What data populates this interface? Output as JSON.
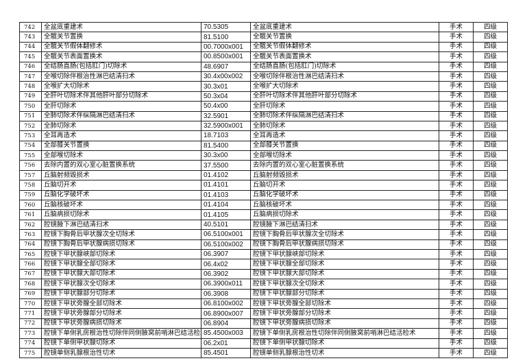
{
  "rows": [
    [
      "742",
      "全盆底重建术",
      "70.5305",
      "手术",
      "四级"
    ],
    [
      "743",
      "全髋关节置换",
      "81.5100",
      "手术",
      "四级"
    ],
    [
      "744",
      "全髋关节假体翻修术",
      "00.7000x001",
      "手术",
      "四级"
    ],
    [
      "745",
      "全髋关节表面置换术",
      "00.8500x001",
      "手术",
      "四级"
    ],
    [
      "746",
      "全结肠直肠(包括肛门)切除术",
      "48.6907",
      "手术",
      "四级"
    ],
    [
      "747",
      "全喉切除伴根治性淋巴结清扫术",
      "30.4x00x002",
      "手术",
      "四级"
    ],
    [
      "748",
      "全喉扩大切除术",
      "30.3x01",
      "手术",
      "四级"
    ],
    [
      "749",
      "全肝叶切除术伴其他肝叶部分切除术",
      "50.3x04",
      "手术",
      "四级"
    ],
    [
      "750",
      "全肝切除术",
      "50.4x00",
      "手术",
      "四级"
    ],
    [
      "751",
      "全肺切除术伴纵隔淋巴结清扫术",
      "32.5901",
      "手术",
      "四级"
    ],
    [
      "752",
      "全肺切除术",
      "32.5900x001",
      "手术",
      "四级"
    ],
    [
      "753",
      "全耳再造术",
      "18.7103",
      "手术",
      "四级"
    ],
    [
      "754",
      "全部膝关节置换",
      "81.5400",
      "手术",
      "四级"
    ],
    [
      "755",
      "全部喉切除术",
      "30.3x00",
      "手术",
      "四级"
    ],
    [
      "756",
      "去除内置的双心室心脏置换系统",
      "37.5500",
      "手术",
      "四级"
    ],
    [
      "757",
      "丘脑射频毁损术",
      "01.4102",
      "手术",
      "四级"
    ],
    [
      "758",
      "丘脑切开术",
      "01.4101",
      "手术",
      "四级"
    ],
    [
      "759",
      "丘脑化学破坏术",
      "01.4103",
      "手术",
      "四级"
    ],
    [
      "760",
      "丘脑核破坏术",
      "01.4104",
      "手术",
      "四级"
    ],
    [
      "761",
      "丘脑病损切除术",
      "01.4105",
      "手术",
      "四级"
    ],
    [
      "762",
      "腔镜腋下淋巴结清扫术",
      "40.5101",
      "手术",
      "四级"
    ],
    [
      "763",
      "腔镜下胸骨后甲状腺次全切除术",
      "06.5100x001",
      "手术",
      "四级"
    ],
    [
      "764",
      "腔镜下胸骨后甲状腺病损切除术",
      "06.5100x002",
      "手术",
      "四级"
    ],
    [
      "765",
      "腔镜下甲状腺峡部切除术",
      "06.3907",
      "手术",
      "四级"
    ],
    [
      "766",
      "腔镜下甲状腺全部切除术",
      "06.4x02",
      "手术",
      "四级"
    ],
    [
      "767",
      "腔镜下甲状腺大部切除术",
      "06.3902",
      "手术",
      "四级"
    ],
    [
      "768",
      "腔镜下甲状腺次全切除术",
      "06.3900x011",
      "手术",
      "四级"
    ],
    [
      "769",
      "腔镜下甲状腺部分切除术",
      "06.3908",
      "手术",
      "四级"
    ],
    [
      "770",
      "腔镜下甲状旁腺全部切除术",
      "06.8100x002",
      "手术",
      "四级"
    ],
    [
      "771",
      "腔镜下甲状旁腺部分切除术",
      "06.8900x007",
      "手术",
      "四级"
    ],
    [
      "772",
      "腔镜下甲状旁腺病损切除术",
      "06.8904",
      "手术",
      "四级"
    ],
    [
      "773",
      "腔镜下单侧乳房根治性切除伴同侧腋窝前哨淋巴结活检术",
      "85.4500x003",
      "手术",
      "四级"
    ],
    [
      "774",
      "腔镜下单侧甲状腺切除术",
      "06.2x01",
      "手术",
      "四级"
    ],
    [
      "775",
      "腔镜单侧乳腺根治性切术",
      "85.4501",
      "手术",
      "四级"
    ]
  ]
}
